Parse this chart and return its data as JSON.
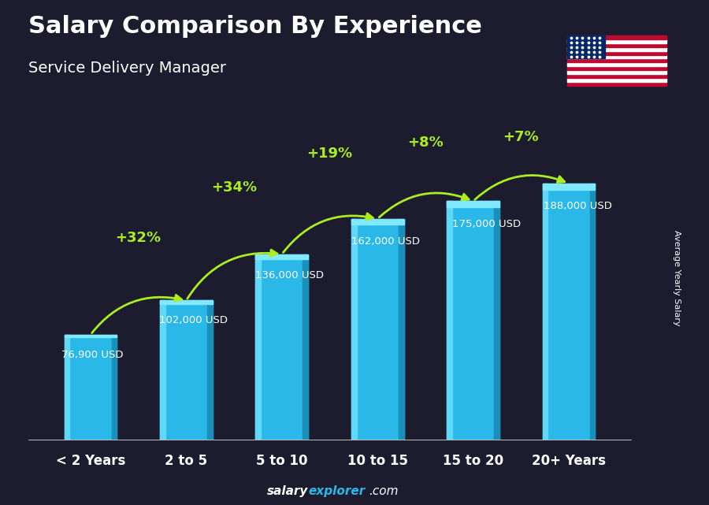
{
  "title": "Salary Comparison By Experience",
  "subtitle": "Service Delivery Manager",
  "ylabel": "Average Yearly Salary",
  "watermark_bold": "salary",
  "watermark_cyan": "explorer",
  "watermark_end": ".com",
  "categories": [
    "< 2 Years",
    "2 to 5",
    "5 to 10",
    "10 to 15",
    "15 to 20",
    "20+ Years"
  ],
  "values": [
    76900,
    102000,
    136000,
    162000,
    175000,
    188000
  ],
  "value_labels": [
    "76,900 USD",
    "102,000 USD",
    "136,000 USD",
    "162,000 USD",
    "175,000 USD",
    "188,000 USD"
  ],
  "pct_changes": [
    "+32%",
    "+34%",
    "+19%",
    "+8%",
    "+7%"
  ],
  "bar_color": "#29b8e8",
  "bar_highlight": "#60d8f8",
  "bar_shadow": "#1a8fba",
  "bar_top": "#80e8ff",
  "background_color": "#1c1c2e",
  "title_color": "#ffffff",
  "subtitle_color": "#ffffff",
  "label_color": "#ffffff",
  "pct_color": "#aaee22",
  "watermark_bold_color": "#ffffff",
  "watermark_cyan_color": "#29b8e8",
  "ylim": [
    0,
    230000
  ],
  "bar_width": 0.55,
  "flag_stripes": [
    "#BF0A30",
    "#ffffff",
    "#BF0A30",
    "#ffffff",
    "#BF0A30",
    "#ffffff",
    "#BF0A30",
    "#ffffff",
    "#BF0A30",
    "#ffffff",
    "#BF0A30",
    "#ffffff",
    "#BF0A30"
  ],
  "flag_blue": "#002868"
}
